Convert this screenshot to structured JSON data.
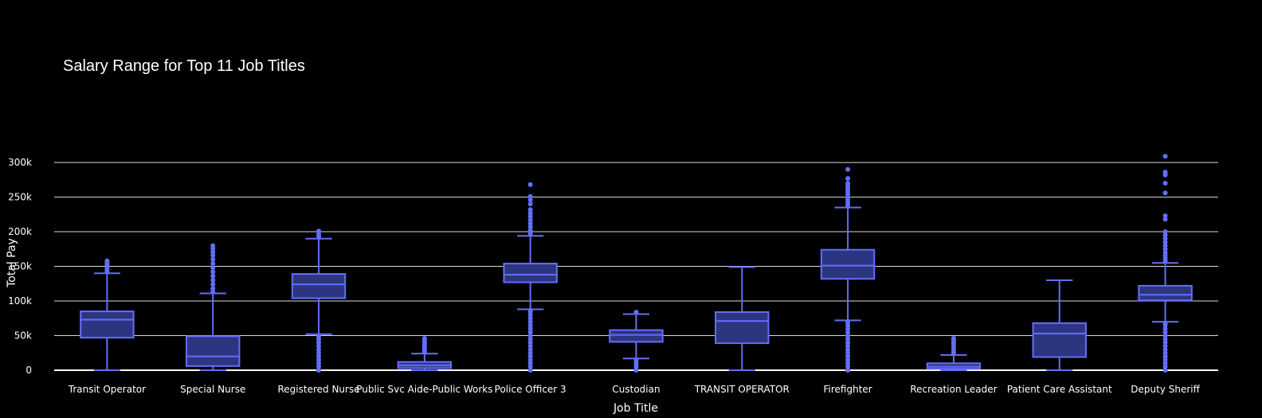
{
  "chart_data": {
    "type": "box",
    "title": "Salary Range for Top 11 Job Titles",
    "xlabel": "Job Title",
    "ylabel": "Total Pay",
    "ylim": [
      0,
      330000
    ],
    "yticks": [
      0,
      50000,
      100000,
      150000,
      200000,
      250000,
      300000
    ],
    "ytick_labels": [
      "0",
      "50k",
      "100k",
      "150k",
      "200k",
      "250k",
      "300k"
    ],
    "grid": true,
    "colors": {
      "background": "#000000",
      "box_line": "#636efa",
      "box_fill": "#2e3580",
      "grid": "#ffffff",
      "text": "#ffffff"
    },
    "categories": [
      "Transit Operator",
      "Special Nurse",
      "Registered Nurse",
      "Public Svc Aide-Public Works",
      "Police Officer 3",
      "Custodian",
      "TRANSIT OPERATOR",
      "Firefighter",
      "Recreation Leader",
      "Patient Care Assistant",
      "Deputy Sheriff"
    ],
    "boxes": [
      {
        "name": "Transit Operator",
        "lower_fence": 0,
        "q1": 47000,
        "median": 73000,
        "q3": 85000,
        "upper_fence": 140000,
        "outliers": [
          142000,
          145000,
          148000,
          151000,
          154000,
          156000,
          158000
        ]
      },
      {
        "name": "Special Nurse",
        "lower_fence": 0,
        "q1": 6000,
        "median": 20000,
        "q3": 49000,
        "upper_fence": 111000,
        "outliers": [
          113000,
          118000,
          124000,
          130000,
          136000,
          142000,
          148000,
          154000,
          160000,
          166000,
          171000,
          176000,
          180000
        ]
      },
      {
        "name": "Registered Nurse",
        "lower_fence": 52000,
        "q1": 104000,
        "median": 124000,
        "q3": 139000,
        "upper_fence": 190000,
        "outliers": [
          0,
          5000,
          10000,
          15000,
          20000,
          25000,
          30000,
          35000,
          40000,
          45000,
          49000,
          193000,
          197000,
          201000
        ]
      },
      {
        "name": "Public Svc Aide-Public Works",
        "lower_fence": 0,
        "q1": 3000,
        "median": 7000,
        "q3": 12000,
        "upper_fence": 24000,
        "outliers": [
          26000,
          29000,
          32000,
          35000,
          38000,
          41000,
          44000,
          46000
        ]
      },
      {
        "name": "Police Officer 3",
        "lower_fence": 88000,
        "q1": 127000,
        "median": 138000,
        "q3": 154000,
        "upper_fence": 194000,
        "outliers": [
          0,
          5000,
          10000,
          15000,
          20000,
          25000,
          30000,
          35000,
          40000,
          45000,
          50000,
          55000,
          60000,
          65000,
          70000,
          75000,
          80000,
          85000,
          197000,
          202000,
          207000,
          212000,
          217000,
          222000,
          227000,
          232000,
          240000,
          246000,
          251000,
          268000
        ]
      },
      {
        "name": "Custodian",
        "lower_fence": 17000,
        "q1": 41000,
        "median": 51000,
        "q3": 58000,
        "upper_fence": 81000,
        "outliers": [
          0,
          4000,
          8000,
          12000,
          15000,
          84000
        ]
      },
      {
        "name": "TRANSIT OPERATOR",
        "lower_fence": 0,
        "q1": 39000,
        "median": 71000,
        "q3": 84000,
        "upper_fence": 149000,
        "outliers": []
      },
      {
        "name": "Firefighter",
        "lower_fence": 72000,
        "q1": 132000,
        "median": 151000,
        "q3": 174000,
        "upper_fence": 235000,
        "outliers": [
          0,
          5000,
          10000,
          15000,
          20000,
          25000,
          30000,
          35000,
          40000,
          45000,
          50000,
          55000,
          60000,
          65000,
          69000,
          238000,
          242000,
          246000,
          250000,
          254000,
          258000,
          262000,
          266000,
          270000,
          277000,
          290000
        ]
      },
      {
        "name": "Recreation Leader",
        "lower_fence": 0,
        "q1": 2000,
        "median": 5000,
        "q3": 10000,
        "upper_fence": 22000,
        "outliers": [
          24000,
          27000,
          31000,
          35000,
          39000,
          43000,
          46000
        ]
      },
      {
        "name": "Patient Care Assistant",
        "lower_fence": 0,
        "q1": 19000,
        "median": 53000,
        "q3": 68000,
        "upper_fence": 130000,
        "outliers": []
      },
      {
        "name": "Deputy Sheriff",
        "lower_fence": 70000,
        "q1": 101000,
        "median": 109000,
        "q3": 122000,
        "upper_fence": 155000,
        "outliers": [
          0,
          5000,
          10000,
          15000,
          20000,
          25000,
          30000,
          35000,
          40000,
          45000,
          50000,
          55000,
          60000,
          65000,
          68000,
          158000,
          162000,
          166000,
          170000,
          175000,
          180000,
          185000,
          190000,
          195000,
          200000,
          218000,
          223000,
          256000,
          270000,
          282000,
          286000,
          309000
        ]
      }
    ]
  }
}
